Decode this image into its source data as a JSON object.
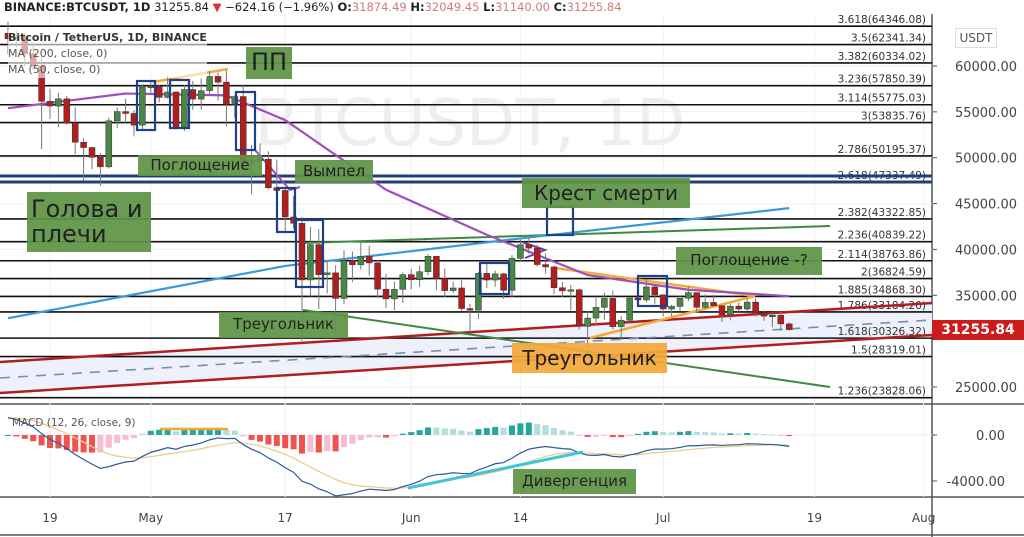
{
  "header": {
    "symbol": "BINANCE:BTCUSDT, 1D",
    "price": "31255.84",
    "change": "−624.16 (−1.96%)",
    "o_label": "O:",
    "o": "31874.49",
    "h_label": "H:",
    "h": "32049.45",
    "l_label": "L:",
    "l": "31140.00",
    "c_label": "C:",
    "c": "31255.84",
    "down_icon": "triangle-down-icon"
  },
  "legend": {
    "title": "Bitcoin / TetherUS, 1D, BINANCE",
    "ma1": "MA (200, close, 0)",
    "ma2": "MA (50, close, 0)"
  },
  "watermark": "BTCUSDT, 1D",
  "currency": "USDT",
  "last_price": "31255.84",
  "annotations": {
    "pp": "ПП",
    "engulf": "Поглощение",
    "pennant": "Вымпел",
    "hs": "Голова и плечи",
    "death_cross": "Крест смерти",
    "engulf_q": "Поглощение -?",
    "triangle1": "Треугольник",
    "triangle2": "Треугольник",
    "divergence": "Дивергенция"
  },
  "macd_label": "MACD (12, 26, close, 9)",
  "colors": {
    "up": "#4a8744",
    "down": "#b01e1e",
    "ma200": "#3a9ad9",
    "ma50": "#9b4fc0",
    "fib": "#111111",
    "last": "#cc1b1b",
    "macd": "#2c5aa0",
    "signal": "#e8cf8a",
    "hist_up": "#26a69a",
    "hist_down": "#ef5350"
  },
  "chart_data": {
    "type": "candlestick",
    "title": "Bitcoin / TetherUS, 1D, BINANCE",
    "ylim": [
      22000,
      66000
    ],
    "y_ticks": [
      "60000.00",
      "55000.00",
      "50000.00",
      "45000.00",
      "40000.00",
      "35000.00",
      "25000.00"
    ],
    "y_tick_values": [
      60000,
      55000,
      50000,
      45000,
      40000,
      35000,
      25000
    ],
    "x_ticks": [
      {
        "label": "19",
        "date": "2021-04-19"
      },
      {
        "label": "May",
        "date": "2021-05-01"
      },
      {
        "label": "17",
        "date": "2021-05-17"
      },
      {
        "label": "Jun",
        "date": "2021-06-01"
      },
      {
        "label": "14",
        "date": "2021-06-14"
      },
      {
        "label": "Jul",
        "date": "2021-07-01"
      },
      {
        "label": "19",
        "date": "2021-07-19"
      },
      {
        "label": "Aug",
        "date": "2021-08-01"
      }
    ],
    "candles": [
      [
        "2021-04-14",
        63575,
        64854,
        61301,
        62959
      ],
      [
        "2021-04-15",
        62959,
        63800,
        62020,
        63159
      ],
      [
        "2021-04-16",
        63159,
        63520,
        60000,
        61334
      ],
      [
        "2021-04-17",
        61334,
        62506,
        59580,
        60006
      ],
      [
        "2021-04-18",
        60006,
        61000,
        50931,
        56150
      ],
      [
        "2021-04-19",
        56150,
        57526,
        54221,
        55633
      ],
      [
        "2021-04-20",
        55633,
        57076,
        53329,
        56425
      ],
      [
        "2021-04-21",
        56425,
        56757,
        53600,
        53787
      ],
      [
        "2021-04-22",
        53787,
        55500,
        50400,
        51690
      ],
      [
        "2021-04-23",
        51690,
        52131,
        47500,
        51110
      ],
      [
        "2021-04-24",
        51110,
        51200,
        48750,
        50050
      ],
      [
        "2021-04-25",
        50050,
        50500,
        46930,
        49004
      ],
      [
        "2021-04-26",
        49004,
        54356,
        48817,
        54021
      ],
      [
        "2021-04-27",
        54021,
        55460,
        53222,
        55033
      ],
      [
        "2021-04-28",
        55033,
        56428,
        53813,
        54824
      ],
      [
        "2021-04-29",
        54824,
        55200,
        52330,
        53555
      ],
      [
        "2021-04-30",
        53555,
        58000,
        53013,
        57694
      ],
      [
        "2021-05-01",
        57694,
        58458,
        56957,
        57800
      ],
      [
        "2021-05-02",
        57800,
        57950,
        56035,
        56578
      ],
      [
        "2021-05-03",
        56578,
        58981,
        56435,
        57169
      ],
      [
        "2021-05-04",
        57169,
        57200,
        53046,
        53200
      ],
      [
        "2021-05-05",
        53200,
        57939,
        52900,
        57436
      ],
      [
        "2021-05-06",
        57436,
        58360,
        55200,
        56393
      ],
      [
        "2021-05-07",
        56393,
        58650,
        55241,
        57314
      ],
      [
        "2021-05-08",
        57314,
        59500,
        56900,
        58862
      ],
      [
        "2021-05-09",
        58862,
        59300,
        56235,
        58240
      ],
      [
        "2021-05-10",
        58240,
        59500,
        53400,
        55816
      ],
      [
        "2021-05-11",
        55816,
        56862,
        54370,
        56670
      ],
      [
        "2021-05-12",
        56670,
        58000,
        48600,
        49631
      ],
      [
        "2021-05-13",
        49631,
        51367,
        46000,
        49670
      ],
      [
        "2021-05-14",
        49670,
        51570,
        48800,
        49840
      ],
      [
        "2021-05-15",
        49840,
        50700,
        46555,
        46723
      ],
      [
        "2021-05-16",
        46723,
        49800,
        43825,
        46431
      ],
      [
        "2021-05-17",
        46431,
        46647,
        42001,
        43538
      ],
      [
        "2021-05-18",
        43538,
        45800,
        42250,
        42850
      ],
      [
        "2021-05-19",
        42850,
        43546,
        30000,
        36671
      ],
      [
        "2021-05-20",
        36671,
        42451,
        34850,
        40526
      ],
      [
        "2021-05-21",
        40526,
        42200,
        33488,
        37252
      ],
      [
        "2021-05-22",
        37252,
        38829,
        35200,
        37449
      ],
      [
        "2021-05-23",
        37449,
        38270,
        31111,
        34655
      ],
      [
        "2021-05-24",
        34655,
        39920,
        34031,
        38796
      ],
      [
        "2021-05-25",
        38796,
        39791,
        36419,
        38324
      ],
      [
        "2021-05-26",
        38324,
        40841,
        37800,
        39241
      ],
      [
        "2021-05-27",
        39241,
        40411,
        37134,
        38529
      ],
      [
        "2021-05-28",
        38529,
        38877,
        34684,
        35664
      ],
      [
        "2021-05-29",
        35664,
        37338,
        33632,
        34605
      ],
      [
        "2021-05-30",
        34605,
        36488,
        33379,
        35641
      ],
      [
        "2021-05-31",
        35641,
        37499,
        34153,
        37253
      ],
      [
        "2021-06-01",
        37253,
        37894,
        35666,
        36693
      ],
      [
        "2021-06-02",
        36693,
        38225,
        35920,
        37568
      ],
      [
        "2021-06-03",
        37568,
        39476,
        37170,
        39246
      ],
      [
        "2021-06-04",
        39246,
        39289,
        35555,
        36829
      ],
      [
        "2021-06-05",
        36829,
        37925,
        34800,
        35513
      ],
      [
        "2021-06-06",
        35513,
        36480,
        35258,
        35796
      ],
      [
        "2021-06-07",
        35796,
        36800,
        33300,
        33552
      ],
      [
        "2021-06-08",
        33552,
        34069,
        31000,
        33380
      ],
      [
        "2021-06-09",
        33380,
        37534,
        32396,
        37388
      ],
      [
        "2021-06-10",
        37388,
        38491,
        35782,
        36662
      ],
      [
        "2021-06-11",
        36662,
        37680,
        35936,
        37331
      ],
      [
        "2021-06-12",
        37331,
        37448,
        34601,
        35546
      ],
      [
        "2021-06-13",
        35546,
        39380,
        34757,
        39020
      ],
      [
        "2021-06-14",
        39020,
        41064,
        38730,
        40516
      ],
      [
        "2021-06-15",
        40516,
        41330,
        39506,
        40144
      ],
      [
        "2021-06-16",
        40144,
        40528,
        38116,
        38349
      ],
      [
        "2021-06-17",
        38349,
        39559,
        37365,
        38092
      ],
      [
        "2021-06-18",
        38092,
        38202,
        35129,
        35820
      ],
      [
        "2021-06-19",
        35820,
        36457,
        34803,
        35483
      ],
      [
        "2021-06-20",
        35483,
        36137,
        33336,
        35600
      ],
      [
        "2021-06-21",
        35600,
        35750,
        31251,
        31608
      ],
      [
        "2021-06-22",
        31608,
        33298,
        28805,
        32509
      ],
      [
        "2021-06-23",
        32509,
        34881,
        31683,
        33678
      ],
      [
        "2021-06-24",
        33678,
        35298,
        32286,
        34663
      ],
      [
        "2021-06-25",
        34663,
        35500,
        31275,
        31584
      ],
      [
        "2021-06-26",
        31584,
        32730,
        30151,
        32283
      ],
      [
        "2021-06-27",
        32283,
        34749,
        32071,
        34700
      ],
      [
        "2021-06-28",
        34700,
        35297,
        33862,
        34494
      ],
      [
        "2021-06-29",
        34494,
        36600,
        34225,
        35911
      ],
      [
        "2021-06-30",
        35911,
        36100,
        34017,
        35045
      ],
      [
        "2021-07-01",
        35045,
        35057,
        32711,
        33504
      ],
      [
        "2021-07-02",
        33504,
        33977,
        32699,
        33786
      ],
      [
        "2021-07-03",
        33786,
        34945,
        33316,
        34669
      ],
      [
        "2021-07-04",
        34669,
        35967,
        34357,
        35286
      ],
      [
        "2021-07-05",
        35286,
        35293,
        33125,
        33690
      ],
      [
        "2021-07-06",
        33690,
        35118,
        33532,
        34220
      ],
      [
        "2021-07-07",
        34220,
        35059,
        33777,
        33862
      ],
      [
        "2021-07-08",
        33862,
        33929,
        32077,
        32875
      ],
      [
        "2021-07-09",
        32875,
        34100,
        32261,
        33815
      ],
      [
        "2021-07-10",
        33815,
        34262,
        33004,
        33502
      ],
      [
        "2021-07-11",
        33502,
        34666,
        33306,
        34259
      ],
      [
        "2021-07-12",
        34259,
        34678,
        32658,
        33086
      ],
      [
        "2021-07-13",
        33086,
        33340,
        32202,
        32729
      ],
      [
        "2021-07-14",
        32729,
        33114,
        31550,
        32820
      ],
      [
        "2021-07-15",
        32820,
        33185,
        31133,
        31880
      ],
      [
        "2021-07-16",
        31874.49,
        32049.45,
        31140,
        31255.84
      ]
    ],
    "ma200": [
      [
        "2021-04-14",
        32500
      ],
      [
        "2021-05-17",
        38200
      ],
      [
        "2021-06-14",
        41200
      ],
      [
        "2021-07-16",
        44500
      ]
    ],
    "ma50": [
      [
        "2021-04-14",
        55400
      ],
      [
        "2021-04-28",
        57000
      ],
      [
        "2021-05-10",
        56800
      ],
      [
        "2021-05-17",
        54100
      ],
      [
        "2021-05-29",
        46500
      ],
      [
        "2021-06-10",
        41600
      ],
      [
        "2021-06-22",
        37200
      ],
      [
        "2021-07-04",
        35600
      ],
      [
        "2021-07-16",
        34900
      ]
    ],
    "fib_levels": [
      {
        "label": "3.618(64346.08)",
        "value": 64346.08
      },
      {
        "label": "3.5(62341.34)",
        "value": 62341.34
      },
      {
        "label": "3.382(60334.02)",
        "value": 60334.02
      },
      {
        "label": "3.236(57850.39)",
        "value": 57850.39
      },
      {
        "label": "3.114(55775.03)",
        "value": 55775.03
      },
      {
        "label": "3(53835.76)",
        "value": 53835.76
      },
      {
        "label": "2.786(50195.37)",
        "value": 50195.37
      },
      {
        "label": "2.618(47337.49)",
        "value": 47337.49
      },
      {
        "label": "2.382(43322.85)",
        "value": 43322.85
      },
      {
        "label": "2.236(40839.22)",
        "value": 40839.22
      },
      {
        "label": "2.114(38763.86)",
        "value": 38763.86
      },
      {
        "label": "2(36824.59)",
        "value": 36824.59
      },
      {
        "label": "1.885(34868.30)",
        "value": 34868.3
      },
      {
        "label": "1.786(33184.20)",
        "value": 33184.2
      },
      {
        "label": "1.618(30326.32)",
        "value": 30326.32
      },
      {
        "label": "1.5(28319.01)",
        "value": 28319.01
      },
      {
        "label": "1.236(23828.06)",
        "value": 23828.06
      }
    ],
    "macd": {
      "params": "12, 26, close, 9",
      "y_ticks": [
        "0.00",
        "-4000.00"
      ],
      "y_tick_values": [
        0,
        -4000
      ]
    },
    "grid": true
  }
}
